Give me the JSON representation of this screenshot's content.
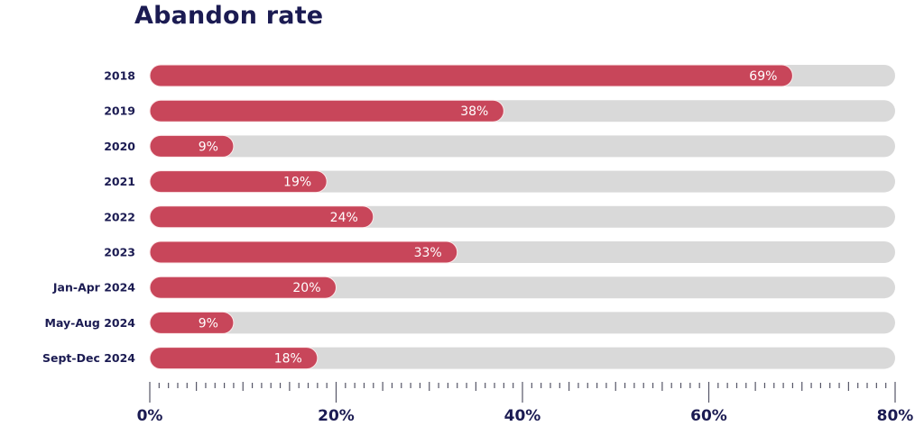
{
  "chart_data": {
    "type": "bar",
    "orientation": "horizontal",
    "title": "Abandon rate",
    "categories": [
      "2018",
      "2019",
      "2020",
      "2021",
      "2022",
      "2023",
      "Jan-Apr 2024",
      "May-Aug 2024",
      "Sept-Dec 2024"
    ],
    "values": [
      69,
      38,
      9,
      19,
      24,
      33,
      20,
      9,
      18
    ],
    "value_labels": [
      "69%",
      "38%",
      "9%",
      "19%",
      "24%",
      "33%",
      "20%",
      "9%",
      "18%"
    ],
    "xlabel": "",
    "ylabel": "",
    "xlim": [
      0,
      80
    ],
    "x_ticks": [
      0,
      20,
      40,
      60,
      80
    ],
    "x_tick_labels": [
      "0%",
      "20%",
      "40%",
      "60%",
      "80%"
    ],
    "minor_tick_step": 1,
    "medium_tick_step": 5,
    "grid": false,
    "legend": "none",
    "colors": {
      "bar": "#c8465a",
      "track": "#d9d9d9",
      "text": "#1b1b52",
      "value_text": "#ffffff"
    }
  }
}
